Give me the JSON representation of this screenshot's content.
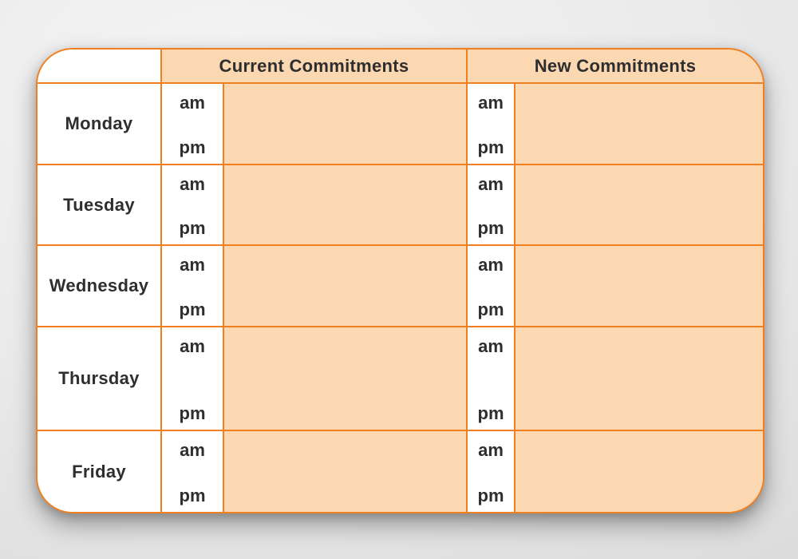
{
  "colors": {
    "grid_orange": "#F0801F",
    "cell_peach": "#FBD7B2",
    "text_dark": "#2E2E2E"
  },
  "time_labels": {
    "am": "am",
    "pm": "pm"
  },
  "group_headers": [
    {
      "label": "Current Commitments"
    },
    {
      "label": "New Commitments"
    }
  ],
  "days": [
    {
      "label": "Monday",
      "entries": {
        "current": {
          "am": "",
          "pm": ""
        },
        "new": {
          "am": "",
          "pm": ""
        }
      }
    },
    {
      "label": "Tuesday",
      "entries": {
        "current": {
          "am": "",
          "pm": ""
        },
        "new": {
          "am": "",
          "pm": ""
        }
      }
    },
    {
      "label": "Wednesday",
      "entries": {
        "current": {
          "am": "",
          "pm": ""
        },
        "new": {
          "am": "",
          "pm": ""
        }
      }
    },
    {
      "label": "Thursday",
      "entries": {
        "current": {
          "am": "",
          "pm": ""
        },
        "new": {
          "am": "",
          "pm": ""
        }
      }
    },
    {
      "label": "Friday",
      "entries": {
        "current": {
          "am": "",
          "pm": ""
        },
        "new": {
          "am": "",
          "pm": ""
        }
      }
    }
  ]
}
